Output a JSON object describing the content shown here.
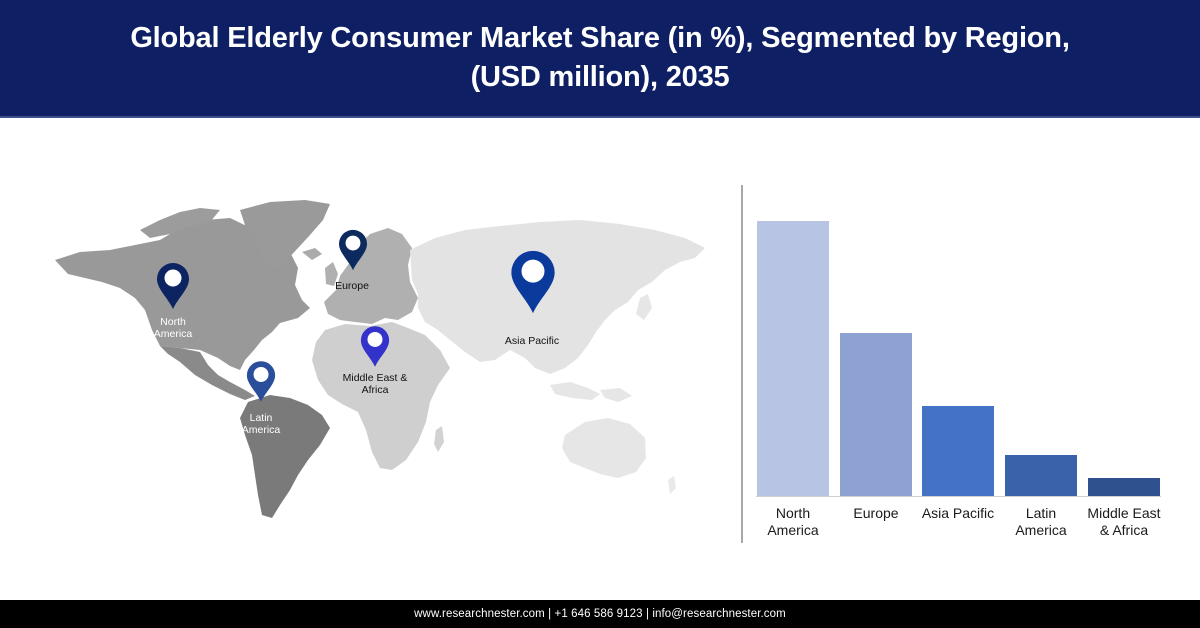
{
  "header": {
    "title": "Global Elderly Consumer Market Share (in %), Segmented by Region, (USD million), 2035"
  },
  "map": {
    "pins": [
      {
        "id": "north-america",
        "label_line1": "North",
        "label_line2": "America",
        "color": "#0c2461",
        "label_style": "light"
      },
      {
        "id": "europe",
        "label_line1": "Europe",
        "label_line2": "",
        "color": "#0c2a5e",
        "label_style": "dark"
      },
      {
        "id": "asia-pacific",
        "label_line1": "Asia Pacific",
        "label_line2": "",
        "color": "#0a3a9c",
        "label_style": "dark"
      },
      {
        "id": "middle-east-africa",
        "label_line1": "Middle East &",
        "label_line2": "Africa",
        "color": "#3333cc",
        "label_style": "dark"
      },
      {
        "id": "latin-america",
        "label_line1": "Latin",
        "label_line2": "America",
        "color": "#2a4f9a",
        "label_style": "light"
      }
    ],
    "colors": {
      "north_america": "#999999",
      "greenland": "#9a9a9a",
      "latin_america": "#7a7a7a",
      "europe": "#b0b0b0",
      "africa": "#cfcfcf",
      "asia": "#e3e3e3",
      "oceania": "#e6e6e6"
    }
  },
  "chart_data": {
    "type": "bar",
    "title": "Global Elderly Consumer Market Share (in %), Segmented by Region, (USD million), 2035",
    "xlabel": "",
    "ylabel": "",
    "categories": [
      "North America",
      "Europe",
      "Asia Pacific",
      "Latin America",
      "Middle East & Africa"
    ],
    "category_labels": [
      [
        "North",
        "America"
      ],
      [
        "Europe",
        ""
      ],
      [
        "Asia Pacific",
        ""
      ],
      [
        "Latin",
        "America"
      ],
      [
        "Middle East",
        "& Africa"
      ]
    ],
    "values": [
      38.5,
      22.8,
      12.6,
      5.7,
      2.5
    ],
    "value_note": "No axis ticks or data labels shown; values estimated from relative bar heights (px: 275, 163, 90, 41, 18)",
    "bar_colors": [
      "#b8c4e3",
      "#8ea1d3",
      "#4472c4",
      "#3a62ab",
      "#2f528f"
    ],
    "ylim": [
      0,
      45
    ],
    "grid": false,
    "legend": "none"
  },
  "footer": {
    "text": "www.researchnester.com  | +1 646 586 9123 | info@researchnester.com"
  }
}
